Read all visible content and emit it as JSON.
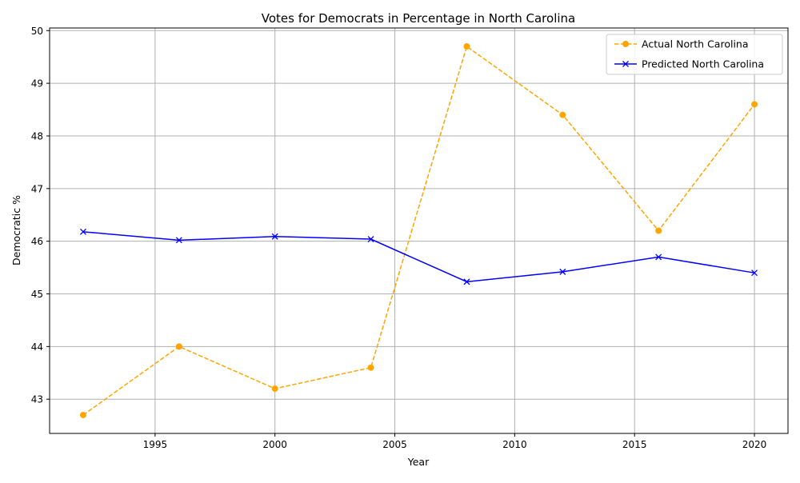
{
  "chart_data": {
    "type": "line",
    "title": "Votes for Democrats in Percentage in North Carolina",
    "xlabel": "Year",
    "ylabel": "Democratic %",
    "xlim": [
      1990.6,
      2021.4
    ],
    "ylim": [
      42.35,
      50.05
    ],
    "xticks": [
      1995,
      2000,
      2005,
      2010,
      2015,
      2020
    ],
    "yticks": [
      43,
      44,
      45,
      46,
      47,
      48,
      49,
      50
    ],
    "grid": true,
    "legend_position": "top-right",
    "x": [
      1992,
      1996,
      2000,
      2004,
      2008,
      2012,
      2016,
      2020
    ],
    "series": [
      {
        "name": "Actual North Carolina",
        "color": "#ffa500",
        "line_style": "dashed",
        "marker": "circle",
        "values": [
          42.7,
          44.0,
          43.2,
          43.6,
          49.7,
          48.4,
          46.2,
          48.6
        ]
      },
      {
        "name": "Predicted North Carolina",
        "color": "#0000ff",
        "line_style": "solid",
        "marker": "x",
        "values": [
          46.18,
          46.02,
          46.09,
          46.04,
          45.23,
          45.42,
          45.7,
          45.4
        ]
      }
    ]
  }
}
